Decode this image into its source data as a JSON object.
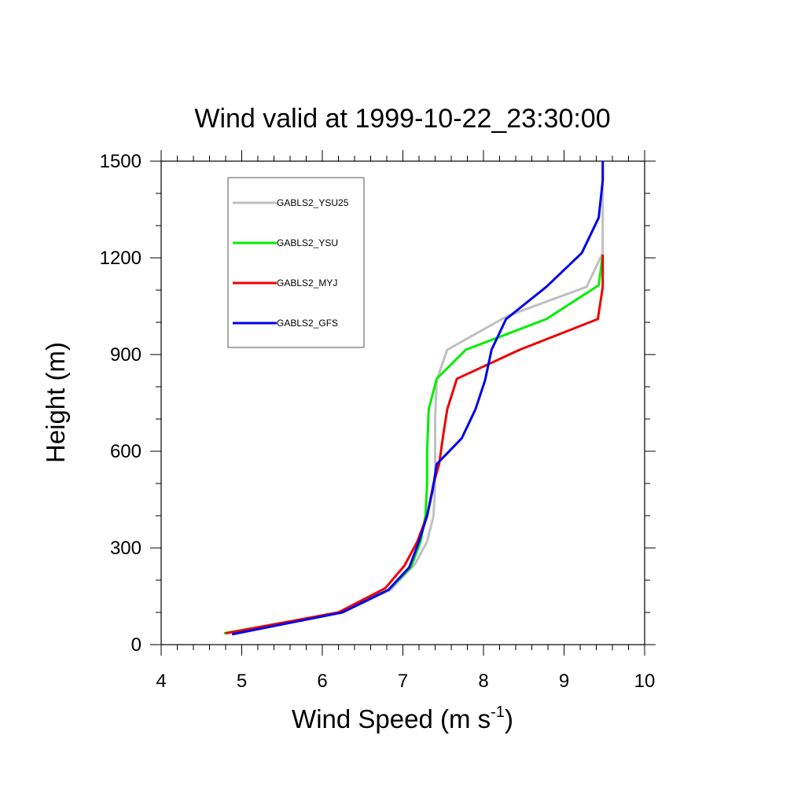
{
  "chart_data": {
    "type": "line",
    "title": "Wind valid at 1999-10-22_23:30:00",
    "xlabel": "Wind Speed (m s",
    "xlabel_superscript": "-1",
    "xlabel_suffix": ")",
    "ylabel": "Height (m)",
    "xlim": [
      4,
      10
    ],
    "ylim": [
      0,
      1500
    ],
    "x_ticks": [
      4,
      5,
      6,
      7,
      8,
      9,
      10
    ],
    "y_ticks": [
      0,
      300,
      600,
      900,
      1200,
      1500
    ],
    "grid": false,
    "legend_position": "top-left",
    "series": [
      {
        "name": "GABLS2_YSU25",
        "color": "#c0c0c0",
        "points": [
          [
            4.8,
            35
          ],
          [
            6.25,
            100
          ],
          [
            6.85,
            170
          ],
          [
            7.15,
            250
          ],
          [
            7.3,
            320
          ],
          [
            7.38,
            400
          ],
          [
            7.4,
            500
          ],
          [
            7.4,
            600
          ],
          [
            7.4,
            700
          ],
          [
            7.42,
            820
          ],
          [
            7.55,
            915
          ],
          [
            8.3,
            1020
          ],
          [
            9.28,
            1110
          ],
          [
            9.48,
            1215
          ],
          [
            9.48,
            1500
          ]
        ]
      },
      {
        "name": "GABLS2_YSU",
        "color": "#00ee00",
        "points": [
          [
            4.78,
            35
          ],
          [
            6.22,
            100
          ],
          [
            6.82,
            170
          ],
          [
            7.1,
            240
          ],
          [
            7.22,
            320
          ],
          [
            7.28,
            400
          ],
          [
            7.3,
            500
          ],
          [
            7.3,
            600
          ],
          [
            7.32,
            730
          ],
          [
            7.42,
            825
          ],
          [
            7.78,
            915
          ],
          [
            8.78,
            1010
          ],
          [
            9.43,
            1115
          ],
          [
            9.48,
            1210
          ]
        ]
      },
      {
        "name": "GABLS2_MYJ",
        "color": "#ee0000",
        "points": [
          [
            4.8,
            35
          ],
          [
            6.2,
            100
          ],
          [
            6.78,
            175
          ],
          [
            7.02,
            245
          ],
          [
            7.18,
            320
          ],
          [
            7.3,
            400
          ],
          [
            7.38,
            500
          ],
          [
            7.45,
            560
          ],
          [
            7.5,
            650
          ],
          [
            7.55,
            730
          ],
          [
            7.67,
            825
          ],
          [
            8.45,
            915
          ],
          [
            9.42,
            1010
          ],
          [
            9.48,
            1110
          ],
          [
            9.48,
            1210
          ]
        ]
      },
      {
        "name": "GABLS2_GFS",
        "color": "#0000ee",
        "points": [
          [
            4.88,
            32
          ],
          [
            6.25,
            100
          ],
          [
            6.82,
            170
          ],
          [
            7.08,
            240
          ],
          [
            7.2,
            320
          ],
          [
            7.3,
            400
          ],
          [
            7.37,
            480
          ],
          [
            7.42,
            560
          ],
          [
            7.73,
            640
          ],
          [
            7.9,
            730
          ],
          [
            8.02,
            820
          ],
          [
            8.1,
            915
          ],
          [
            8.28,
            1010
          ],
          [
            8.78,
            1110
          ],
          [
            9.22,
            1215
          ],
          [
            9.43,
            1325
          ],
          [
            9.48,
            1440
          ],
          [
            9.48,
            1500
          ]
        ]
      }
    ]
  }
}
